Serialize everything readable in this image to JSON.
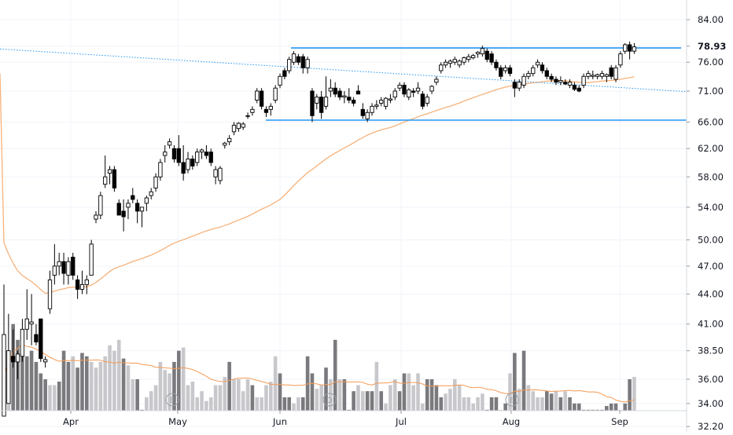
{
  "chart_data": {
    "type": "candlestick",
    "title": "",
    "price_axis": {
      "scale": "log",
      "ticks": [
        "84.00",
        "78.93",
        "76.00",
        "71.00",
        "66.00",
        "62.00",
        "58.00",
        "54.00",
        "50.00",
        "47.00",
        "44.00",
        "41.00",
        "38.50",
        "36.00",
        "34.00",
        "32.20"
      ],
      "highlight_label": "78.93",
      "range": [
        31.8,
        88.0
      ]
    },
    "time_axis": {
      "labels": [
        "Apr",
        "May",
        "Jun",
        "Jul",
        "Aug",
        "Sep"
      ]
    },
    "horizontal_lines": [
      {
        "name": "resistance",
        "value": 78.6,
        "color": "#2196f3"
      },
      {
        "name": "support",
        "value": 66.3,
        "color": "#2196f3"
      }
    ],
    "trend_line": {
      "start_value": 78.4,
      "end_value": 70.9,
      "color": "#2196f3",
      "style": "dotted"
    },
    "moving_average": {
      "color": "#f7b27a"
    },
    "volume_average": {
      "color": "#f59a54"
    },
    "event_markers": [
      {
        "label": "E"
      },
      {
        "label": "D"
      },
      {
        "label": "E"
      }
    ],
    "colors": {
      "up_body": "#ffffff",
      "down_body": "#000000",
      "wick": "#000000",
      "vol_up": "#c8c8cc",
      "vol_down": "#7a7a7e"
    },
    "candles": [
      [
        0,
        33,
        45,
        33,
        40
      ],
      [
        1,
        34,
        42,
        34,
        38.5
      ],
      [
        2,
        38,
        40.5,
        37,
        37.5
      ],
      [
        3,
        37.5,
        38.5,
        36,
        38.2
      ],
      [
        4,
        38,
        41.5,
        37.5,
        40.5
      ],
      [
        5,
        40.5,
        44.5,
        39.5,
        41.5
      ],
      [
        6,
        41,
        44,
        39,
        41.2
      ],
      [
        7,
        40,
        41,
        39,
        39.3
      ],
      [
        8,
        41.5,
        41.5,
        37.5,
        37.8
      ],
      [
        9,
        37.5,
        38,
        37,
        37.7
      ],
      [
        10,
        42.5,
        46.5,
        42,
        45.5
      ],
      [
        11,
        46,
        49.5,
        45,
        47
      ],
      [
        12,
        47,
        48.5,
        46,
        47.5
      ],
      [
        13,
        47.5,
        48.5,
        45,
        46.2
      ],
      [
        14,
        46,
        48,
        45,
        47.5
      ],
      [
        15,
        48,
        48.5,
        45.5,
        46
      ],
      [
        16,
        45.5,
        46,
        43.5,
        44.5
      ],
      [
        17,
        44.5,
        46.5,
        44,
        45
      ],
      [
        18,
        45,
        46,
        44,
        45.5
      ],
      [
        19,
        46,
        50,
        46,
        49.5
      ],
      [
        20,
        52.5,
        53.5,
        52,
        53
      ],
      [
        21,
        53,
        56,
        52.5,
        55.5
      ],
      [
        22,
        57,
        61,
        56.5,
        58
      ],
      [
        23,
        58.5,
        59.5,
        57,
        59
      ],
      [
        24,
        59,
        59.5,
        56,
        56.5
      ],
      [
        25,
        54.5,
        55,
        53,
        53
      ],
      [
        26,
        53.5,
        55,
        51,
        52.8
      ],
      [
        27,
        54,
        55,
        52.5,
        54.5
      ],
      [
        28,
        55.5,
        56.5,
        54.5,
        55
      ],
      [
        29,
        54.5,
        55,
        52,
        53.5
      ],
      [
        30,
        53.5,
        54,
        51.5,
        54
      ],
      [
        31,
        54.5,
        55.5,
        53.5,
        55.2
      ],
      [
        32,
        55.5,
        56.5,
        55,
        56
      ],
      [
        33,
        56.5,
        58.5,
        56,
        58
      ],
      [
        34,
        58,
        60.5,
        57.5,
        60
      ],
      [
        35,
        61,
        62.5,
        60,
        61.5
      ],
      [
        36,
        62.5,
        63.5,
        62,
        63
      ],
      [
        37,
        62,
        62.5,
        60,
        60.5
      ],
      [
        38,
        62,
        64,
        59.5,
        60
      ],
      [
        39,
        60,
        62.5,
        57.5,
        58.5
      ],
      [
        40,
        59,
        61.5,
        58.5,
        60.5
      ],
      [
        41,
        60.5,
        61,
        59,
        59.5
      ],
      [
        42,
        60,
        62,
        59.5,
        61.5
      ],
      [
        43,
        61.5,
        62,
        60.5,
        61.8
      ],
      [
        44,
        61.5,
        62.5,
        60.5,
        61
      ],
      [
        45,
        61.5,
        62,
        59.5,
        60
      ],
      [
        46,
        58,
        59.5,
        57,
        59
      ],
      [
        47,
        57.5,
        59.5,
        57,
        59.2
      ],
      [
        48,
        62.5,
        63,
        62,
        62.8
      ],
      [
        49,
        63,
        64,
        62.5,
        63.5
      ],
      [
        50,
        64.5,
        66,
        64,
        65.5
      ],
      [
        51,
        65,
        66,
        64.5,
        65.8
      ],
      [
        52,
        65.2,
        66,
        64.8,
        65.7
      ],
      [
        53,
        67,
        67.5,
        66.5,
        67
      ],
      [
        54,
        67.5,
        68.5,
        67,
        68
      ],
      [
        55,
        69.5,
        71.5,
        69,
        71
      ],
      [
        56,
        71,
        71.5,
        68,
        68.5
      ],
      [
        57,
        68,
        68.5,
        66.8,
        67.5
      ],
      [
        58,
        68,
        69,
        67,
        68.5
      ],
      [
        59,
        69.5,
        72,
        69,
        71.5
      ],
      [
        60,
        72,
        74,
        71.5,
        73.5
      ],
      [
        61,
        74.5,
        75,
        73,
        73.5
      ],
      [
        62,
        74.5,
        77,
        74,
        76.5
      ],
      [
        63,
        76,
        78,
        75.5,
        77.5
      ],
      [
        64,
        77,
        77.5,
        75.5,
        76
      ],
      [
        65,
        77,
        77.5,
        74,
        75
      ],
      [
        66,
        75,
        77,
        74,
        76.5
      ],
      [
        67,
        71,
        71.5,
        66,
        67
      ],
      [
        68,
        69,
        70.5,
        68,
        70
      ],
      [
        69,
        70,
        71,
        66.5,
        67.5
      ],
      [
        70,
        68.5,
        73.5,
        68,
        70
      ],
      [
        71,
        71,
        73,
        70,
        71.5
      ],
      [
        72,
        71.5,
        72.5,
        70,
        70.5
      ],
      [
        73,
        71,
        71.5,
        69.5,
        70
      ],
      [
        74,
        70,
        71,
        69,
        70.2
      ],
      [
        75,
        70,
        71.5,
        69,
        69.5
      ],
      [
        76,
        69.5,
        70,
        68.5,
        69
      ],
      [
        77,
        71,
        72,
        70.5,
        70.5
      ],
      [
        78,
        68,
        69,
        66.5,
        67
      ],
      [
        79,
        66.5,
        68,
        66,
        67.5
      ],
      [
        80,
        67.5,
        69,
        67,
        68.5
      ],
      [
        81,
        68.5,
        69.5,
        68,
        68.7
      ],
      [
        82,
        69,
        70,
        68.5,
        69.5
      ],
      [
        83,
        68.5,
        70,
        68,
        69.8
      ],
      [
        84,
        69.5,
        70.5,
        69,
        69.7
      ],
      [
        85,
        70,
        71.5,
        69.5,
        71
      ],
      [
        86,
        71.5,
        72.5,
        71,
        72
      ],
      [
        87,
        72,
        72.5,
        70,
        70.5
      ],
      [
        88,
        70,
        71.5,
        69.5,
        71.2
      ],
      [
        89,
        71,
        71.5,
        70,
        70.8
      ],
      [
        90,
        71,
        72.5,
        70.5,
        71.5
      ],
      [
        91,
        70.5,
        71,
        68,
        68.5
      ],
      [
        92,
        69,
        70.5,
        68.5,
        70
      ],
      [
        93,
        71,
        72,
        70.5,
        71.8
      ],
      [
        94,
        72.5,
        73.5,
        72,
        73
      ],
      [
        95,
        74.5,
        76,
        74,
        75.5
      ],
      [
        96,
        75.5,
        76.5,
        75,
        76
      ],
      [
        97,
        75.8,
        76.5,
        75,
        76.2
      ],
      [
        98,
        76,
        77,
        75.5,
        76.5
      ],
      [
        99,
        75.5,
        76.5,
        75,
        76.2
      ],
      [
        100,
        76,
        77,
        75.5,
        76.8
      ],
      [
        101,
        76.5,
        77.5,
        76,
        77
      ],
      [
        102,
        76.8,
        77.5,
        76.5,
        77.2
      ],
      [
        103,
        77.5,
        78,
        76.8,
        77.8
      ],
      [
        104,
        77.5,
        79,
        77,
        78.5
      ],
      [
        105,
        78,
        78.5,
        76,
        76.5
      ],
      [
        106,
        77.5,
        78,
        75.5,
        76
      ],
      [
        107,
        76,
        76.5,
        74.5,
        75
      ],
      [
        108,
        75,
        75.5,
        73,
        73.5
      ],
      [
        109,
        74.5,
        75.5,
        74,
        75
      ],
      [
        110,
        75,
        75.5,
        73.5,
        74
      ],
      [
        111,
        72.5,
        73,
        70,
        71.5
      ],
      [
        112,
        71.5,
        73,
        71,
        72.5
      ],
      [
        113,
        72,
        74,
        71.5,
        73.5
      ],
      [
        114,
        73.5,
        74.5,
        73,
        74
      ],
      [
        115,
        74,
        75.5,
        73.5,
        75
      ],
      [
        116,
        75.5,
        76.5,
        75,
        76
      ],
      [
        117,
        75.5,
        76,
        74,
        74.5
      ],
      [
        118,
        74.5,
        75,
        73,
        73.5
      ],
      [
        119,
        73.5,
        74,
        72.5,
        73
      ],
      [
        120,
        73,
        73.5,
        72,
        72.5
      ],
      [
        121,
        72.5,
        73.5,
        72,
        72.8
      ],
      [
        122,
        72.5,
        73,
        72,
        72.2
      ],
      [
        123,
        72,
        73,
        71.5,
        72.5
      ],
      [
        124,
        72,
        72.5,
        71,
        71.3
      ],
      [
        125,
        71.5,
        72,
        70.8,
        71
      ],
      [
        126,
        72,
        74,
        71.5,
        73.5
      ],
      [
        127,
        73.5,
        74.5,
        73,
        74
      ],
      [
        128,
        73.5,
        74.5,
        73,
        73.7
      ],
      [
        129,
        73.5,
        74,
        73,
        73.8
      ],
      [
        130,
        73.5,
        74.5,
        73,
        74
      ],
      [
        131,
        73.5,
        74,
        72.5,
        73.8
      ],
      [
        132,
        75,
        75.5,
        73,
        73.5
      ],
      [
        133,
        73,
        75.5,
        72.5,
        75
      ],
      [
        134,
        75.5,
        78,
        75,
        77.5
      ],
      [
        135,
        78,
        79.5,
        77.5,
        79.2
      ],
      [
        136,
        79.2,
        79.8,
        76.5,
        78
      ],
      [
        137,
        78,
        79.5,
        77.5,
        78.8
      ]
    ],
    "volume": [
      [
        0,
        36.5,
        1
      ],
      [
        1,
        38,
        1
      ],
      [
        2,
        41,
        0
      ],
      [
        3,
        39.5,
        0
      ],
      [
        4,
        40.5,
        0
      ],
      [
        5,
        38,
        0
      ],
      [
        6,
        38.5,
        0
      ],
      [
        7,
        37.5,
        0
      ],
      [
        8,
        36.5,
        0
      ],
      [
        9,
        36,
        0
      ],
      [
        10,
        35.5,
        1
      ],
      [
        11,
        35.5,
        1
      ],
      [
        12,
        35.8,
        0
      ],
      [
        13,
        38.5,
        0
      ],
      [
        14,
        37.5,
        0
      ],
      [
        15,
        38,
        1
      ],
      [
        16,
        37,
        0
      ],
      [
        17,
        38.3,
        0
      ],
      [
        18,
        38,
        0
      ],
      [
        19,
        37.5,
        1
      ],
      [
        20,
        37,
        1
      ],
      [
        21,
        37.5,
        1
      ],
      [
        22,
        38,
        1
      ],
      [
        23,
        39,
        1
      ],
      [
        24,
        38.5,
        1
      ],
      [
        25,
        39.5,
        1
      ],
      [
        26,
        37.8,
        0
      ],
      [
        27,
        37.2,
        1
      ],
      [
        28,
        36,
        1
      ],
      [
        29,
        36,
        0
      ],
      [
        30,
        33.5,
        0
      ],
      [
        31,
        34.5,
        1
      ],
      [
        32,
        35,
        1
      ],
      [
        33,
        35.5,
        1
      ],
      [
        34,
        37.5,
        1
      ],
      [
        35,
        36.8,
        1
      ],
      [
        36,
        36.5,
        1
      ],
      [
        37,
        37.5,
        0
      ],
      [
        38,
        38.5,
        0
      ],
      [
        39,
        38.8,
        1
      ],
      [
        40,
        35.5,
        1
      ],
      [
        41,
        35.8,
        1
      ],
      [
        42,
        34.5,
        1
      ],
      [
        43,
        35,
        1
      ],
      [
        44,
        34.2,
        1
      ],
      [
        45,
        34.5,
        1
      ],
      [
        46,
        35.5,
        1
      ],
      [
        47,
        35.5,
        1
      ],
      [
        48,
        36.2,
        1
      ],
      [
        49,
        37.5,
        0
      ],
      [
        50,
        36,
        1
      ],
      [
        51,
        36,
        1
      ],
      [
        52,
        35,
        1
      ],
      [
        53,
        36,
        1
      ],
      [
        54,
        35.5,
        0
      ],
      [
        55,
        34.5,
        1
      ],
      [
        56,
        34.5,
        1
      ],
      [
        57,
        35.5,
        1
      ],
      [
        58,
        35.8,
        1
      ],
      [
        59,
        38,
        1
      ],
      [
        60,
        36.5,
        0
      ],
      [
        61,
        34.5,
        0
      ],
      [
        62,
        34.5,
        0
      ],
      [
        63,
        34,
        1
      ],
      [
        64,
        34.5,
        1
      ],
      [
        65,
        34.5,
        0
      ],
      [
        66,
        38,
        0
      ],
      [
        67,
        36.5,
        0
      ],
      [
        68,
        35.2,
        1
      ],
      [
        69,
        35.5,
        1
      ],
      [
        70,
        37,
        0
      ],
      [
        71,
        36,
        1
      ],
      [
        72,
        39.5,
        0
      ],
      [
        73,
        36,
        1
      ],
      [
        74,
        36,
        0
      ],
      [
        75,
        33.5,
        0
      ],
      [
        76,
        35,
        0
      ],
      [
        77,
        35.5,
        1
      ],
      [
        78,
        35,
        1
      ],
      [
        79,
        35,
        0
      ],
      [
        80,
        35,
        0
      ],
      [
        81,
        37.5,
        1
      ],
      [
        82,
        35,
        0
      ],
      [
        83,
        34,
        1
      ],
      [
        84,
        35.5,
        1
      ],
      [
        85,
        36,
        1
      ],
      [
        86,
        35,
        0
      ],
      [
        87,
        36.5,
        0
      ],
      [
        88,
        36.5,
        1
      ],
      [
        89,
        35.5,
        1
      ],
      [
        90,
        36.5,
        1
      ],
      [
        91,
        34,
        1
      ],
      [
        92,
        36,
        0
      ],
      [
        93,
        36,
        0
      ],
      [
        94,
        35.5,
        0
      ],
      [
        95,
        34.5,
        0
      ],
      [
        96,
        34.8,
        1
      ],
      [
        97,
        35.2,
        1
      ],
      [
        98,
        36,
        1
      ],
      [
        99,
        35.5,
        1
      ],
      [
        100,
        34.5,
        1
      ],
      [
        101,
        34.5,
        1
      ],
      [
        102,
        34,
        1
      ],
      [
        103,
        34.5,
        1
      ],
      [
        104,
        34.8,
        1
      ],
      [
        105,
        33.5,
        0
      ],
      [
        106,
        34.5,
        0
      ],
      [
        107,
        34.5,
        0
      ],
      [
        108,
        33.5,
        1
      ],
      [
        109,
        34,
        0
      ],
      [
        110,
        36.5,
        1
      ],
      [
        111,
        38.3,
        0
      ],
      [
        112,
        35.2,
        1
      ],
      [
        113,
        38.5,
        0
      ],
      [
        114,
        35.5,
        1
      ],
      [
        115,
        35,
        1
      ],
      [
        116,
        34.5,
        1
      ],
      [
        117,
        34.5,
        1
      ],
      [
        118,
        35,
        0
      ],
      [
        119,
        34.8,
        0
      ],
      [
        120,
        35,
        1
      ],
      [
        121,
        34.5,
        0
      ],
      [
        122,
        35,
        1
      ],
      [
        123,
        34.5,
        0
      ],
      [
        124,
        34,
        0
      ],
      [
        125,
        34,
        0
      ],
      [
        126,
        33.5,
        0
      ],
      [
        127,
        33.5,
        0
      ],
      [
        128,
        33.5,
        0
      ],
      [
        129,
        33.5,
        0
      ],
      [
        130,
        33.5,
        0
      ],
      [
        131,
        33.8,
        0
      ],
      [
        132,
        34,
        0
      ],
      [
        133,
        34,
        0
      ],
      [
        134,
        33.5,
        1
      ],
      [
        135,
        34,
        0
      ],
      [
        136,
        36,
        0
      ],
      [
        137,
        36.2,
        1
      ]
    ]
  }
}
